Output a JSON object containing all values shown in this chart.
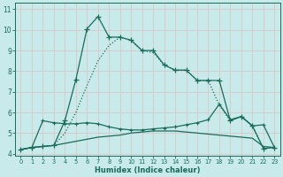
{
  "xlabel": "Humidex (Indice chaleur)",
  "bg_color": "#c8eaea",
  "grid_color": "#b8d8d8",
  "line_color": "#1a6b5a",
  "xlim": [
    -0.5,
    23.5
  ],
  "ylim": [
    3.9,
    11.3
  ],
  "yticks": [
    4,
    5,
    6,
    7,
    8,
    9,
    10,
    11
  ],
  "xticks": [
    0,
    1,
    2,
    3,
    4,
    5,
    6,
    7,
    8,
    9,
    10,
    11,
    12,
    13,
    14,
    15,
    16,
    17,
    18,
    19,
    20,
    21,
    22,
    23
  ],
  "line_sharp_x": [
    0,
    1,
    2,
    3,
    4,
    5,
    6,
    7,
    8,
    9,
    10,
    11,
    12,
    13,
    14,
    15,
    16,
    17,
    18,
    19,
    20,
    21,
    22,
    23
  ],
  "line_sharp_y": [
    4.2,
    4.3,
    4.35,
    4.4,
    5.6,
    7.6,
    10.05,
    10.65,
    9.65,
    9.65,
    9.5,
    9.0,
    9.0,
    8.3,
    8.05,
    8.05,
    7.55,
    7.55,
    7.55,
    5.6,
    5.8,
    5.35,
    4.25,
    4.3
  ],
  "line_dotted_x": [
    0,
    1,
    2,
    3,
    4,
    5,
    6,
    7,
    8,
    9,
    10,
    11,
    12,
    13,
    14,
    15,
    16,
    17,
    18,
    19,
    20,
    21,
    22,
    23
  ],
  "line_dotted_y": [
    4.2,
    4.3,
    4.35,
    4.4,
    5.0,
    6.0,
    7.3,
    8.5,
    9.25,
    9.65,
    9.5,
    9.0,
    8.9,
    8.3,
    8.05,
    8.05,
    7.55,
    7.55,
    6.35,
    5.6,
    5.8,
    5.35,
    4.25,
    4.3
  ],
  "line_mid_x": [
    0,
    1,
    2,
    3,
    4,
    5,
    6,
    7,
    8,
    9,
    10,
    11,
    12,
    13,
    14,
    15,
    16,
    17,
    18,
    19,
    20,
    21,
    22,
    23
  ],
  "line_mid_y": [
    4.2,
    4.3,
    5.6,
    5.5,
    5.45,
    5.45,
    5.5,
    5.45,
    5.3,
    5.2,
    5.15,
    5.15,
    5.2,
    5.25,
    5.3,
    5.4,
    5.5,
    5.65,
    6.4,
    5.65,
    5.8,
    5.35,
    5.4,
    4.3
  ],
  "line_flat_x": [
    0,
    1,
    2,
    3,
    4,
    5,
    6,
    7,
    8,
    9,
    10,
    11,
    12,
    13,
    14,
    15,
    16,
    17,
    18,
    19,
    20,
    21,
    22,
    23
  ],
  "line_flat_y": [
    4.2,
    4.3,
    4.35,
    4.4,
    4.5,
    4.6,
    4.7,
    4.8,
    4.85,
    4.9,
    5.0,
    5.05,
    5.1,
    5.1,
    5.1,
    5.05,
    5.0,
    4.95,
    4.9,
    4.85,
    4.8,
    4.75,
    4.35,
    4.3
  ],
  "marker_size": 3.0,
  "linewidth": 0.9
}
